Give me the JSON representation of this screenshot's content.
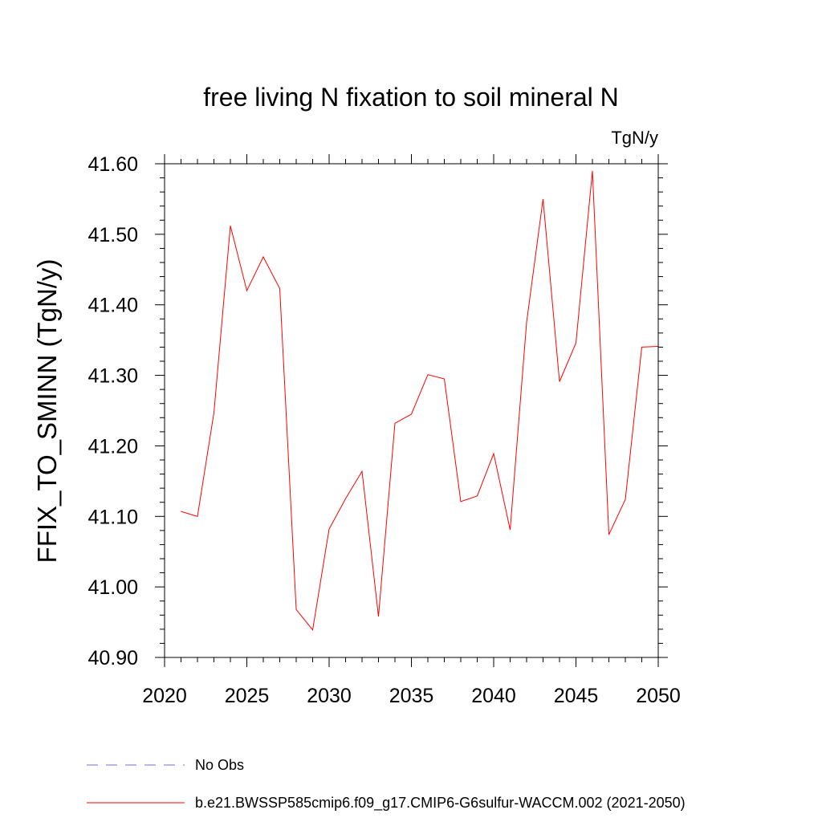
{
  "chart_data": {
    "type": "line",
    "title": "free living N fixation to soil mineral N",
    "units": "TgN/y",
    "ylabel": "FFIX_TO_SMINN  (TgN/y)",
    "xlabel": "",
    "xlim": [
      2020,
      2050
    ],
    "ylim": [
      40.9,
      41.6
    ],
    "xticks": [
      2020,
      2025,
      2030,
      2035,
      2040,
      2045,
      2050
    ],
    "yticks": [
      40.9,
      41.0,
      41.1,
      41.2,
      41.3,
      41.4,
      41.5,
      41.6
    ],
    "xtick_labels": [
      "2020",
      "2025",
      "2030",
      "2035",
      "2040",
      "2045",
      "2050"
    ],
    "ytick_labels": [
      "40.90",
      "41.00",
      "41.10",
      "41.20",
      "41.30",
      "41.40",
      "41.50",
      "41.60"
    ],
    "grid": false,
    "legend_position": "bottom",
    "series": [
      {
        "name": "b.e21.BWSSP585cmip6.f09_g17.CMIP6-G6sulfur-WACCM.002 (2021-2050)",
        "color": "#ff0000",
        "style": "solid",
        "x": [
          2021,
          2022,
          2023,
          2024,
          2025,
          2026,
          2027,
          2028,
          2029,
          2030,
          2031,
          2032,
          2033,
          2034,
          2035,
          2036,
          2037,
          2038,
          2039,
          2040,
          2041,
          2042,
          2043,
          2044,
          2045,
          2046,
          2047,
          2048,
          2049,
          2050
        ],
        "y": [
          41.107,
          41.1,
          41.247,
          41.512,
          41.42,
          41.468,
          41.423,
          40.968,
          40.939,
          41.082,
          41.125,
          41.164,
          40.958,
          41.232,
          41.245,
          41.301,
          41.295,
          41.121,
          41.129,
          41.189,
          41.081,
          41.375,
          41.55,
          41.291,
          41.346,
          41.59,
          41.074,
          41.124,
          41.34,
          41.341
        ]
      }
    ],
    "legend": [
      {
        "label": "No Obs",
        "color": "#7b68c8",
        "style": "dashed"
      },
      {
        "label": "b.e21.BWSSP585cmip6.f09_g17.CMIP6-G6sulfur-WACCM.002 (2021-2050)",
        "color": "#ff0000",
        "style": "solid"
      }
    ]
  }
}
